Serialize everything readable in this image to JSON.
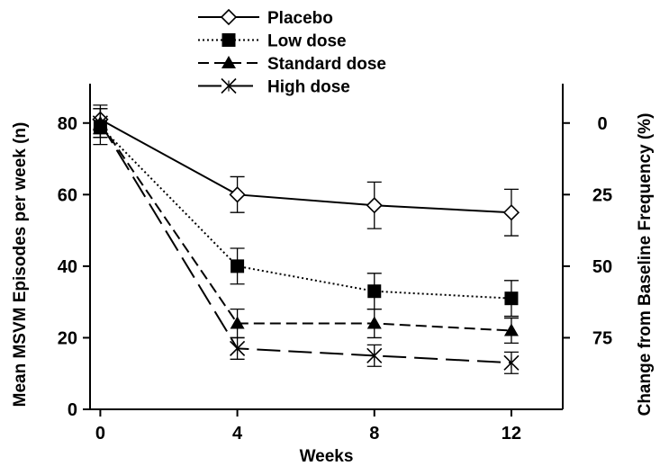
{
  "chart_data": {
    "type": "line",
    "xlabel": "Weeks",
    "ylabel": "Mean MSVM Episodes per week (n)",
    "y2label": "Change from Baseline Frequency (%)",
    "x": [
      0,
      4,
      8,
      12
    ],
    "xticks": [
      "0",
      "4",
      "8",
      "12"
    ],
    "xlim": [
      -0.3,
      13.5
    ],
    "ylim": [
      0,
      91
    ],
    "yticks": [
      "0",
      "20",
      "40",
      "60",
      "80"
    ],
    "y2ticks": [
      "0",
      "25",
      "50",
      "75"
    ],
    "y2_baseline": 80,
    "legend_position": "top-center",
    "series": [
      {
        "name": "Placebo",
        "marker": "open-diamond",
        "dash": "solid",
        "values": [
          81,
          60,
          57,
          55
        ],
        "errors": [
          4,
          5,
          6.5,
          6.5
        ]
      },
      {
        "name": "Low dose",
        "marker": "filled-square",
        "dash": "dotted",
        "values": [
          79,
          40,
          33,
          31
        ],
        "errors": [
          5,
          5,
          5,
          5
        ]
      },
      {
        "name": "Standard dose",
        "marker": "filled-triangle",
        "dash": "dashed",
        "values": [
          80,
          24,
          24,
          22
        ],
        "errors": [
          4,
          4,
          4,
          3.5
        ]
      },
      {
        "name": "High dose",
        "marker": "asterisk",
        "dash": "long-dash",
        "values": [
          80,
          17,
          15,
          13
        ],
        "errors": [
          4,
          3,
          3,
          3
        ]
      }
    ]
  }
}
